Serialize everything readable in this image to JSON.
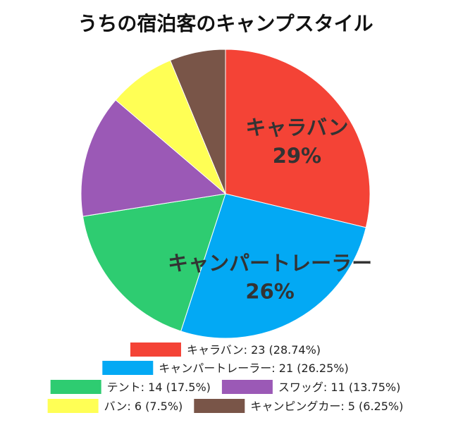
{
  "chart_data": {
    "type": "pie",
    "title": "うちの宿泊客のキャンプスタイル",
    "start_angle_deg": 0,
    "direction": "clockwise",
    "slices": [
      {
        "label": "キャラバン",
        "value": 23,
        "percent": "28.74%",
        "color": "#f44336",
        "legend_text": "キャラバン: 23 (28.74%)",
        "inner_label": "キャラバン",
        "inner_percent": "29%"
      },
      {
        "label": "キャンパートレーラー",
        "value": 21,
        "percent": "26.25%",
        "color": "#03a9f4",
        "legend_text": "キャンパートレーラー: 21 (26.25%)",
        "inner_label": "キャンパートレーラー",
        "inner_percent": "26%"
      },
      {
        "label": "テント",
        "value": 14,
        "percent": "17.5%",
        "color": "#2ecc71",
        "legend_text": "テント: 14 (17.5%)"
      },
      {
        "label": "スワッグ",
        "value": 11,
        "percent": "13.75%",
        "color": "#9b59b6",
        "legend_text": "スワッグ: 11 (13.75%)"
      },
      {
        "label": "バン",
        "value": 6,
        "percent": "7.5%",
        "color": "#ffff55",
        "legend_text": "バン: 6 (7.5%)"
      },
      {
        "label": "キャンピングカー",
        "value": 5,
        "percent": "6.25%",
        "color": "#795548",
        "legend_text": "キャンピングカー: 5 (6.25%)"
      }
    ],
    "legend_placement": "bottom"
  }
}
